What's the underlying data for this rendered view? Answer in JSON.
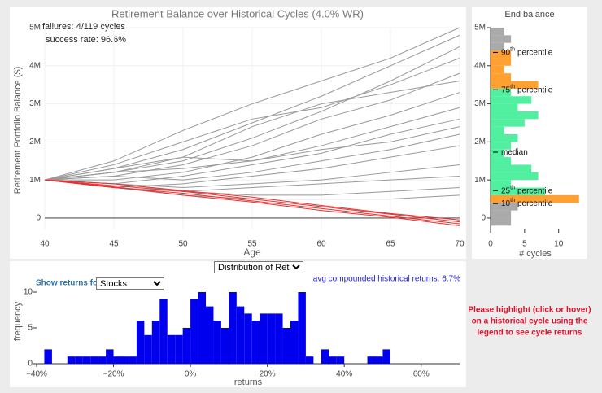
{
  "chart_data": [
    {
      "type": "line",
      "title": "Retirement Balance over Historical Cycles (4.0% WR)",
      "ylabel": "Retirement Portfolio Balance ($)",
      "xlabel": "Age",
      "annotations": [
        "failures: 4/119 cycles",
        "success rate: 96.6%"
      ],
      "x": [
        40,
        45,
        50,
        55,
        60,
        65,
        70
      ],
      "series": [
        {
          "color": "#999999",
          "values": [
            1,
            1.3,
            1.8,
            2.5,
            3.2,
            4.0,
            4.8
          ]
        },
        {
          "color": "#999999",
          "values": [
            1,
            1.2,
            1.5,
            2.1,
            2.8,
            3.6,
            4.5
          ]
        },
        {
          "color": "#999999",
          "values": [
            1,
            1.1,
            1.4,
            1.9,
            2.6,
            3.1,
            3.8
          ]
        },
        {
          "color": "#999999",
          "values": [
            1,
            1.4,
            2.0,
            2.6,
            2.9,
            3.5,
            4.2
          ]
        },
        {
          "color": "#999999",
          "values": [
            1,
            1.0,
            1.2,
            1.6,
            2.2,
            2.7,
            3.3
          ]
        },
        {
          "color": "#999999",
          "values": [
            1,
            1.2,
            1.3,
            1.5,
            1.9,
            2.4,
            2.9
          ]
        },
        {
          "color": "#999999",
          "values": [
            1,
            0.9,
            1.1,
            1.4,
            1.7,
            2.2,
            2.6
          ]
        },
        {
          "color": "#999999",
          "values": [
            1,
            1.1,
            1.0,
            1.2,
            1.5,
            1.8,
            2.2
          ]
        },
        {
          "color": "#999999",
          "values": [
            1,
            0.8,
            0.9,
            1.1,
            1.3,
            1.6,
            1.9
          ]
        },
        {
          "color": "#999999",
          "values": [
            1,
            1.3,
            1.6,
            1.5,
            1.8,
            2.0,
            2.4
          ]
        },
        {
          "color": "#999999",
          "values": [
            1,
            0.9,
            0.8,
            0.9,
            1.0,
            1.2,
            1.4
          ]
        },
        {
          "color": "#999999",
          "values": [
            1,
            0.8,
            0.7,
            0.8,
            0.9,
            1.0,
            1.1
          ]
        },
        {
          "color": "#999999",
          "values": [
            1,
            0.9,
            0.7,
            0.6,
            0.6,
            0.7,
            0.8
          ]
        },
        {
          "color": "#999999",
          "values": [
            1,
            0.8,
            0.6,
            0.5,
            0.5,
            0.5,
            0.6
          ]
        },
        {
          "color": "#999999",
          "values": [
            1,
            1.5,
            2.3,
            3.0,
            3.6,
            4.2,
            5.0
          ]
        },
        {
          "color": "#999999",
          "values": [
            1,
            1.2,
            1.6,
            2.4,
            3.0,
            3.3,
            3.6
          ]
        },
        {
          "color": "#e83030",
          "values": [
            1,
            0.85,
            0.7,
            0.5,
            0.3,
            0.1,
            -0.1
          ]
        },
        {
          "color": "#e83030",
          "values": [
            1,
            0.8,
            0.65,
            0.45,
            0.25,
            0.05,
            -0.15
          ]
        },
        {
          "color": "#e83030",
          "values": [
            1,
            0.9,
            0.72,
            0.55,
            0.33,
            0.12,
            -0.05
          ]
        },
        {
          "color": "#e83030",
          "values": [
            1,
            0.82,
            0.6,
            0.42,
            0.2,
            0.02,
            -0.2
          ]
        }
      ],
      "xlim": [
        40,
        70
      ],
      "xticks": [
        40,
        45,
        50,
        55,
        60,
        65,
        70
      ],
      "ylim": [
        -0.3,
        5
      ],
      "yticks": [
        0,
        {
          "value": 1,
          "label": "1M"
        },
        {
          "value": 2,
          "label": "2M"
        },
        {
          "value": 3,
          "label": "3M"
        },
        {
          "value": 4,
          "label": "4M"
        },
        {
          "value": 5,
          "label": "5M"
        }
      ],
      "grid": true
    },
    {
      "type": "histogram",
      "orientation": "horizontal",
      "title": "End balance",
      "xlabel": "# cycles",
      "bins": [
        -0.2,
        0,
        0.2,
        0.4,
        0.6,
        0.8,
        1.0,
        1.2,
        1.4,
        1.6,
        1.8,
        2.0,
        2.2,
        2.4,
        2.6,
        2.8,
        3.0,
        3.2,
        3.4,
        3.6,
        3.8,
        4.0,
        4.2,
        4.4,
        4.6,
        4.8,
        5.0
      ],
      "values": [
        3,
        3,
        4,
        13,
        8,
        3,
        7,
        6,
        3,
        2,
        3,
        4,
        2,
        5,
        7,
        4,
        6,
        3,
        7,
        3,
        2,
        3,
        3,
        2,
        3,
        2
      ],
      "colors": [
        "#aaaaaa",
        "#aaaaaa",
        "#aaaaaa",
        "#ffa030",
        "#50f0a0",
        "#50f0a0",
        "#50f0a0",
        "#50f0a0",
        "#50f0a0",
        "#50f0a0",
        "#50f0a0",
        "#50f0a0",
        "#50f0a0",
        "#50f0a0",
        "#50f0a0",
        "#50f0a0",
        "#50f0a0",
        "#50f0a0",
        "#ffa030",
        "#ffa030",
        "#ffa030",
        "#ffa030",
        "#ffa030",
        "#aaaaaa",
        "#aaaaaa",
        "#aaaaaa"
      ],
      "percentiles": [
        {
          "ordinal": "90",
          "suffix": "th",
          "word": "percentile",
          "value": 4.35
        },
        {
          "ordinal": "75",
          "suffix": "th",
          "word": "percentile",
          "value": 3.37
        },
        {
          "word": "median",
          "value": 1.73
        },
        {
          "ordinal": "25",
          "suffix": "th",
          "word": "percentile",
          "value": 0.72
        },
        {
          "ordinal": "10",
          "suffix": "th",
          "word": "percentile",
          "value": 0.38
        }
      ],
      "xlim": [
        0,
        13.5
      ],
      "xticks": [
        0,
        5,
        10
      ],
      "ylim": [
        -0.3,
        5
      ],
      "yticks": [
        0,
        {
          "value": 1,
          "label": "1M"
        },
        {
          "value": 2,
          "label": "2M"
        },
        {
          "value": 3,
          "label": "3M"
        },
        {
          "value": 4,
          "label": "4M"
        },
        {
          "value": 5,
          "label": "5M"
        }
      ]
    },
    {
      "type": "histogram",
      "orientation": "vertical",
      "ylabel": "frequency",
      "xlabel": "returns",
      "color": "#0000ee",
      "bins": [
        -38,
        -36,
        -34,
        -32,
        -30,
        -28,
        -26,
        -24,
        -22,
        -20,
        -18,
        -16,
        -14,
        -12,
        -10,
        -8,
        -6,
        -4,
        -2,
        0,
        2,
        4,
        6,
        8,
        10,
        12,
        14,
        16,
        18,
        20,
        22,
        24,
        26,
        28,
        30,
        32,
        34,
        36,
        38,
        40,
        42,
        44,
        46,
        48,
        50,
        52
      ],
      "values": [
        2,
        0,
        0,
        1,
        1,
        1,
        1,
        1,
        2,
        1,
        1,
        1,
        6,
        4,
        6,
        9,
        4,
        4,
        5,
        9,
        10,
        8,
        6,
        5,
        10,
        8,
        7,
        6,
        7,
        7,
        7,
        5,
        6,
        10,
        1,
        0,
        2,
        1,
        1,
        0,
        0,
        0,
        1,
        1,
        2
      ],
      "xlim": [
        -40,
        70
      ],
      "xticks": [
        {
          "value": -40,
          "label": "−40%"
        },
        {
          "value": -20,
          "label": "−20%"
        },
        {
          "value": 0,
          "label": "0%"
        },
        {
          "value": 20,
          "label": "20%"
        },
        {
          "value": 40,
          "label": "40%"
        },
        {
          "value": 60,
          "label": "60%"
        }
      ],
      "ylim": [
        0,
        12
      ],
      "yticks": [
        0,
        5,
        10
      ]
    }
  ],
  "controls": {
    "view_select": "Distribution of Returns",
    "show_label": "Show returns for",
    "asset_select": "Stocks",
    "avg_returns": "avg compounded historical returns: 6.7%"
  },
  "message": [
    "Please highlight (click or hover)",
    "on a historical cycle using the",
    "legend to see cycle returns"
  ]
}
